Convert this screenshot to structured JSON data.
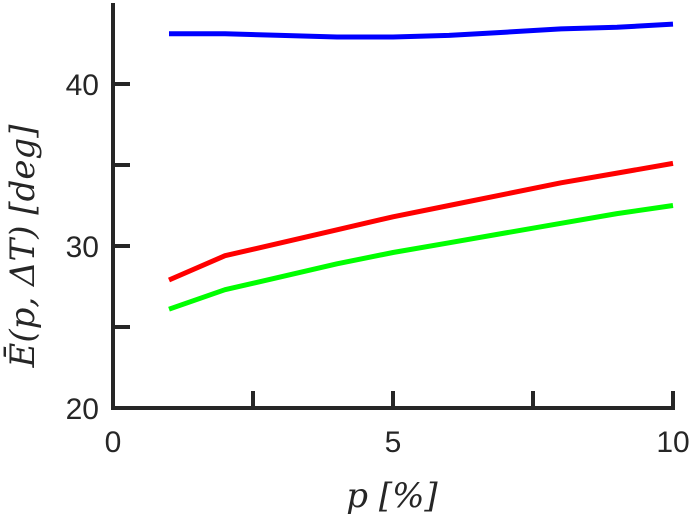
{
  "chart_data": {
    "type": "line",
    "xlabel": "p [%]",
    "ylabel": "Ē(p, ΔT) [deg]",
    "xlim": [
      0,
      10
    ],
    "ylim": [
      20,
      45
    ],
    "x_ticks": [
      0,
      5,
      10
    ],
    "x_minor_ticks": [
      2.5,
      7.5
    ],
    "y_ticks": [
      20,
      30,
      40
    ],
    "y_minor_ticks": [
      25,
      35
    ],
    "grid": false,
    "x": [
      1,
      2,
      3,
      4,
      5,
      6,
      7,
      8,
      9,
      10
    ],
    "series": [
      {
        "color": "#0000ff",
        "values": [
          43.1,
          43.1,
          43.0,
          42.9,
          42.9,
          43.0,
          43.2,
          43.4,
          43.5,
          43.7
        ]
      },
      {
        "color": "#ff0000",
        "values": [
          27.9,
          29.4,
          30.2,
          31.0,
          31.8,
          32.5,
          33.2,
          33.9,
          34.5,
          35.1
        ]
      },
      {
        "color": "#00ff00",
        "values": [
          26.1,
          27.3,
          28.1,
          28.9,
          29.6,
          30.2,
          30.8,
          31.4,
          32.0,
          32.5
        ]
      }
    ]
  }
}
